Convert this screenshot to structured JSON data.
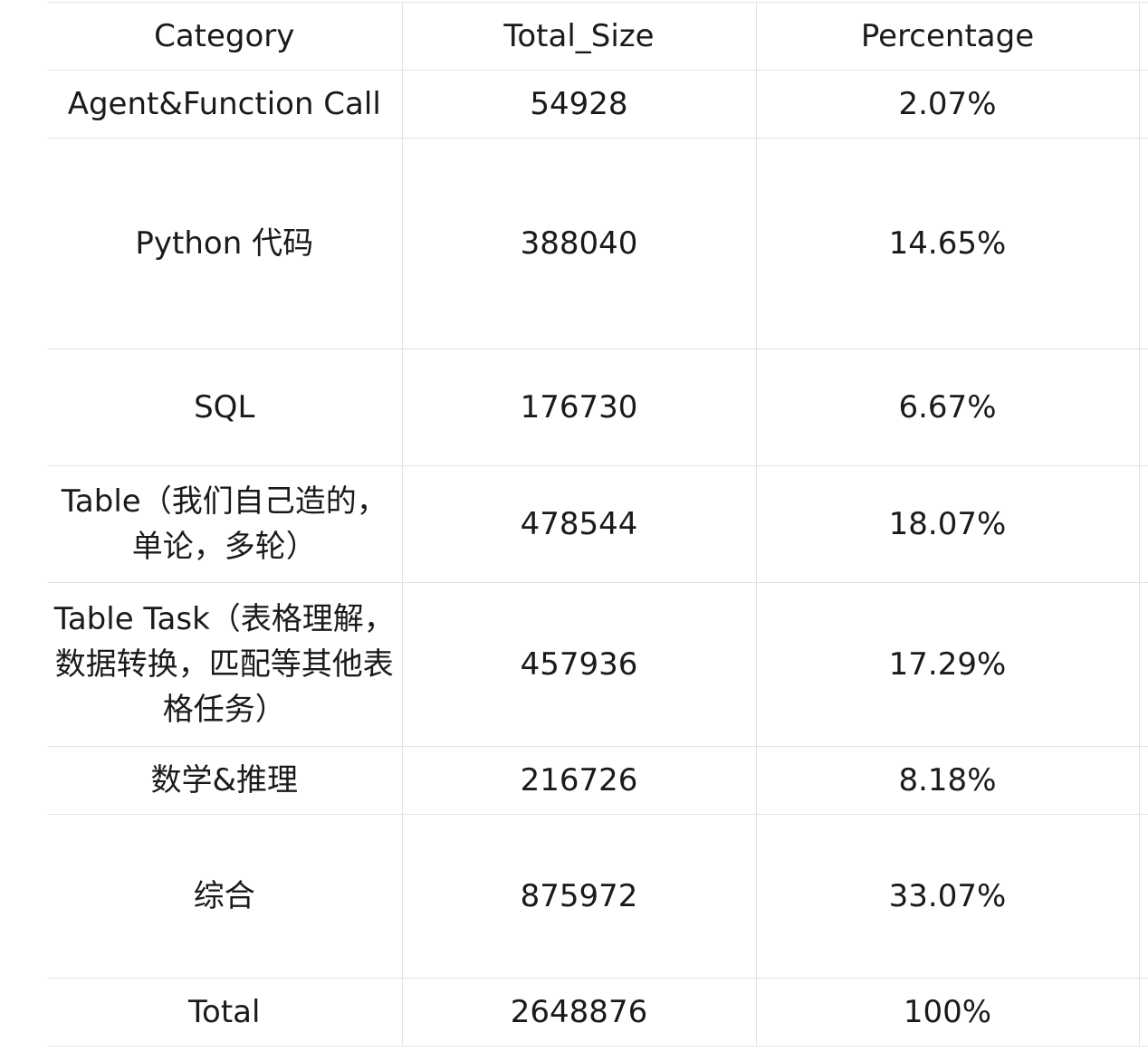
{
  "table": {
    "columns": [
      "Category",
      "Total_Size",
      "Percentage"
    ],
    "rows": [
      {
        "category": "Agent&Function Call",
        "total_size": "54928",
        "percentage": "2.07%"
      },
      {
        "category": "Python 代码",
        "total_size": "388040",
        "percentage": "14.65%"
      },
      {
        "category": "SQL",
        "total_size": "176730",
        "percentage": "6.67%"
      },
      {
        "category": "Table（我们自己造的，单论，多轮）",
        "total_size": "478544",
        "percentage": "18.07%"
      },
      {
        "category": "Table Task（表格理解，数据转换，匹配等其他表格任务）",
        "total_size": "457936",
        "percentage": "17.29%"
      },
      {
        "category": "数学&推理",
        "total_size": "216726",
        "percentage": "8.18%"
      },
      {
        "category": "综合",
        "total_size": "875972",
        "percentage": "33.07%"
      },
      {
        "category": "Total",
        "total_size": "2648876",
        "percentage": "100%"
      }
    ]
  },
  "chart_data": {
    "type": "table",
    "columns": [
      "Category",
      "Total_Size",
      "Percentage"
    ],
    "categories": [
      "Agent&Function Call",
      "Python 代码",
      "SQL",
      "Table（我们自己造的，单论，多轮）",
      "Table Task（表格理解，数据转换，匹配等其他表格任务）",
      "数学&推理",
      "综合",
      "Total"
    ],
    "series": [
      {
        "name": "Total_Size",
        "values": [
          54928,
          388040,
          176730,
          478544,
          457936,
          216726,
          875972,
          2648876
        ]
      },
      {
        "name": "Percentage",
        "values": [
          2.07,
          14.65,
          6.67,
          18.07,
          17.29,
          8.18,
          33.07,
          100
        ]
      }
    ]
  }
}
